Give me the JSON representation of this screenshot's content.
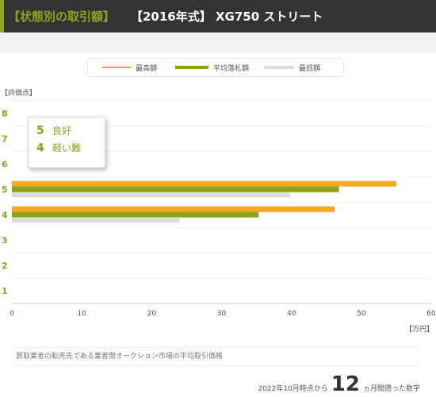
{
  "header": {
    "category_title": "【状態別の取引額】",
    "model_title": "【2016年式】 XG750 ストリート"
  },
  "legend": [
    {
      "label": "最高額",
      "color": "#f5a623"
    },
    {
      "label": "平均落札額",
      "color": "#8aa61e"
    },
    {
      "label": "最低額",
      "color": "#dddddd"
    }
  ],
  "axis_units": {
    "y": "【評価点】",
    "x": "【万円】"
  },
  "tooltip": [
    {
      "score": "5",
      "label": "良好"
    },
    {
      "score": "4",
      "label": "軽い難"
    }
  ],
  "footnote": "買取業者の転売先である業者間オークション市場の平均取引価格",
  "bottom_note": {
    "prefix": "2022年10月時点から",
    "months": "12",
    "suffix": "ヵ月間遡った数字"
  },
  "chart_data": {
    "type": "bar",
    "orientation": "horizontal",
    "categories": [
      "8",
      "7",
      "6",
      "5",
      "4",
      "3",
      "2",
      "1"
    ],
    "series": [
      {
        "name": "最高額",
        "color": "#f5a623",
        "values": [
          null,
          null,
          null,
          55,
          46.2,
          null,
          null,
          null
        ]
      },
      {
        "name": "平均落札額",
        "color": "#8aa61e",
        "values": [
          null,
          null,
          null,
          46.8,
          35.3,
          null,
          null,
          null
        ]
      },
      {
        "name": "最低額",
        "color": "#dddddd",
        "values": [
          null,
          null,
          null,
          39.8,
          24,
          null,
          null,
          null
        ]
      }
    ],
    "xlim": [
      0,
      60
    ],
    "xticks": [
      0,
      10,
      20,
      30,
      40,
      50,
      60
    ],
    "xlabel": "【万円】",
    "ylabel": "【評価点】",
    "grid": true,
    "legend_position": "top"
  }
}
